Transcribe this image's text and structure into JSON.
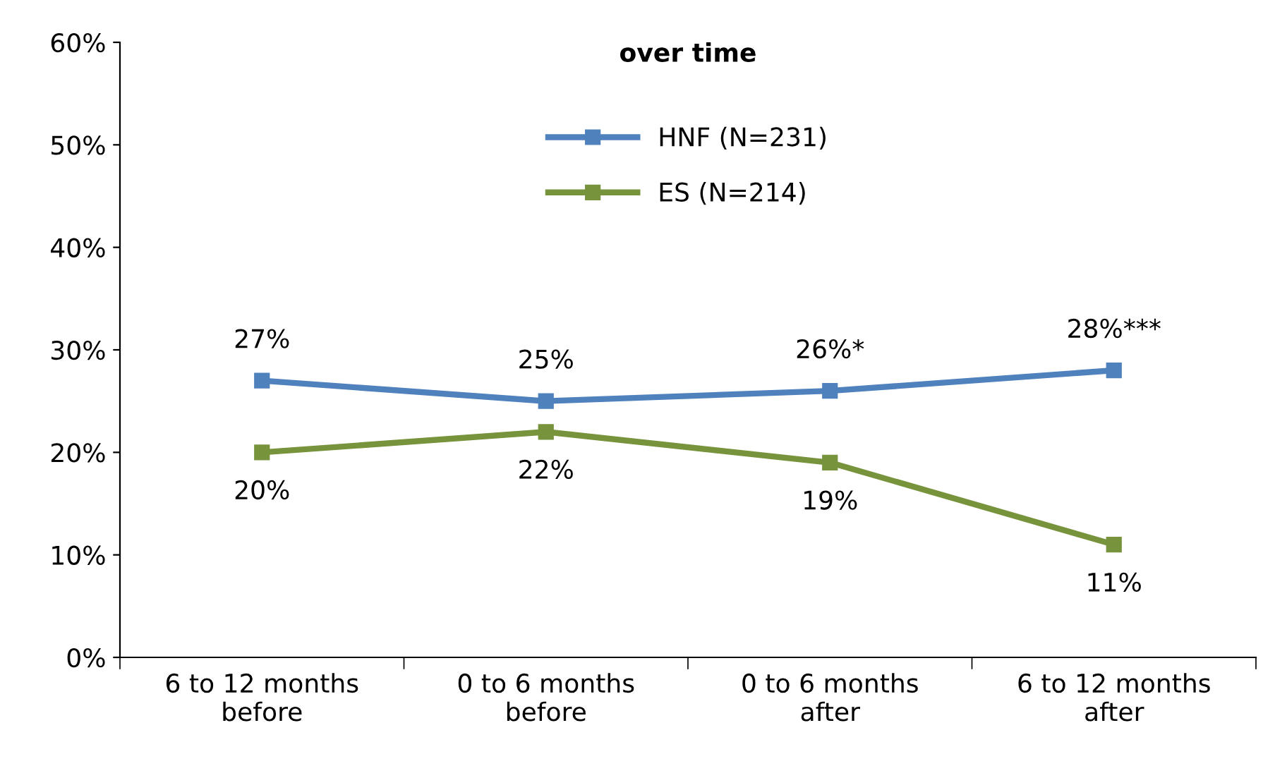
{
  "chart_data": {
    "type": "line",
    "title": "over time",
    "categories": [
      "6 to 12 months\nbefore",
      "0 to 6 months\nbefore",
      "0 to 6 months\nafter",
      "6 to 12 months\nafter"
    ],
    "series": [
      {
        "name": "HNF (N=231)",
        "color": "#4f81bd",
        "values": [
          27,
          25,
          26,
          28
        ],
        "value_labels": [
          "27%",
          "25%",
          "26%*",
          "28%***"
        ]
      },
      {
        "name": "ES (N=214)",
        "color": "#77933c",
        "values": [
          20,
          22,
          19,
          11
        ],
        "value_labels": [
          "20%",
          "22%",
          "19%",
          "11%"
        ]
      }
    ],
    "ylim": [
      0,
      60
    ],
    "yticks": [
      {
        "value": 0,
        "label": "0%"
      },
      {
        "value": 10,
        "label": "10%"
      },
      {
        "value": 20,
        "label": "20%"
      },
      {
        "value": 30,
        "label": "30%"
      },
      {
        "value": 40,
        "label": "40%"
      },
      {
        "value": 50,
        "label": "50%"
      },
      {
        "value": 60,
        "label": "60%"
      }
    ],
    "grid": false,
    "legend": "top",
    "marker": "square",
    "line_style": "solid"
  }
}
